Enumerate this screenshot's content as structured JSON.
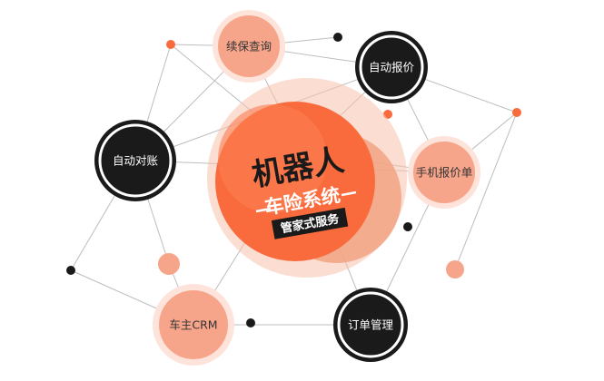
{
  "hub": {
    "title": "机器人",
    "subtitle": "车险系统",
    "tag": "管家式服务"
  },
  "nodes": {
    "renewal": "续保查询",
    "auto_quote": "自动报价",
    "auto_reconcile": "自动对账",
    "mobile_quote": "手机报价单",
    "crm": "车主CRM",
    "order_mgmt": "订单管理"
  },
  "colors": {
    "orange": "#f96b3c",
    "salmon": "#f7a58a",
    "dark": "#1a1a1a",
    "line": "#bdbdbd"
  }
}
